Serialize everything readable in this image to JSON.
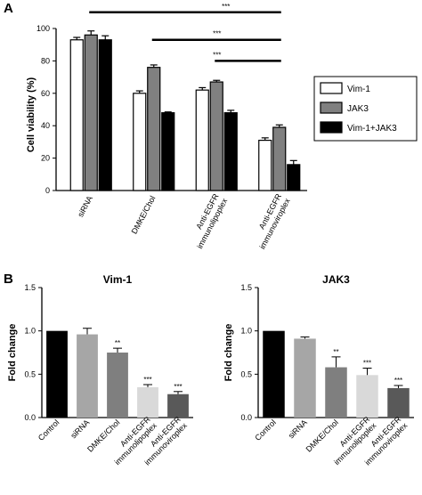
{
  "chart_data": [
    {
      "panel_label": "A",
      "type": "bar",
      "title": "",
      "ylabel": "Cell viability (%)",
      "ylim": [
        0,
        100
      ],
      "yticks": [
        0,
        20,
        40,
        60,
        80,
        100
      ],
      "categories": [
        [
          "siRNA"
        ],
        [
          "DMKE/Chol"
        ],
        [
          "Anti-EGFR",
          "immunolipoplex"
        ],
        [
          "Anti-EGFR",
          "immunoviroplex"
        ]
      ],
      "series": [
        {
          "name": "Vim-1",
          "color": "#ffffff",
          "values": [
            93,
            60,
            62,
            31
          ],
          "errors": [
            1.5,
            1.5,
            1.5,
            1.5
          ]
        },
        {
          "name": "JAK3",
          "color": "#808080",
          "values": [
            96,
            76,
            67,
            39
          ],
          "errors": [
            2.5,
            1.5,
            1,
            1.5
          ]
        },
        {
          "name": "Vim-1+JAK3",
          "color": "#000000",
          "values": [
            93,
            48,
            48,
            16
          ],
          "errors": [
            2.5,
            0.5,
            1.5,
            2.5
          ]
        }
      ],
      "legend_position": "right",
      "significance": [
        {
          "from_category": 0,
          "to_category": 3,
          "value": 110,
          "label": "***"
        },
        {
          "from_category": 1,
          "to_category": 3,
          "value": 93,
          "label": "***"
        },
        {
          "from_category": 2,
          "to_category": 3,
          "value": 80,
          "label": "***"
        }
      ]
    },
    {
      "panel_label": "B",
      "type": "bar",
      "title": "Vim-1",
      "ylabel": "Fold change",
      "ylim": [
        0,
        1.5
      ],
      "yticks": [
        "0.0",
        "0.5",
        "1.0",
        "1.5"
      ],
      "categories": [
        [
          "Control"
        ],
        [
          "siRNA"
        ],
        [
          "DMKE/Chol"
        ],
        [
          "Anti-EGFR",
          "immunolipoplex"
        ],
        [
          "Anti-EGFR",
          "immunoviroplex"
        ]
      ],
      "values": [
        1.0,
        0.96,
        0.75,
        0.35,
        0.27
      ],
      "errors": [
        0,
        0.07,
        0.05,
        0.03,
        0.03
      ],
      "colors": [
        "#000000",
        "#a6a6a6",
        "#7f7f7f",
        "#d9d9d9",
        "#595959"
      ],
      "annotations": [
        "",
        "",
        "**",
        "***",
        "***"
      ]
    },
    {
      "panel_label": "",
      "type": "bar",
      "title": "JAK3",
      "ylabel": "Fold change",
      "ylim": [
        0,
        1.5
      ],
      "yticks": [
        "0.0",
        "0.5",
        "1.0",
        "1.5"
      ],
      "categories": [
        [
          "Control"
        ],
        [
          "siRNA"
        ],
        [
          "DMKE/Chol"
        ],
        [
          "Anti-EGFR",
          "immunolipoplex"
        ],
        [
          "Anti-EGFR",
          "immunoviroplex"
        ]
      ],
      "values": [
        1.0,
        0.91,
        0.58,
        0.49,
        0.34
      ],
      "errors": [
        0,
        0.02,
        0.12,
        0.08,
        0.03
      ],
      "colors": [
        "#000000",
        "#a6a6a6",
        "#7f7f7f",
        "#d9d9d9",
        "#595959"
      ],
      "annotations": [
        "",
        "",
        "**",
        "***",
        "***"
      ]
    }
  ]
}
